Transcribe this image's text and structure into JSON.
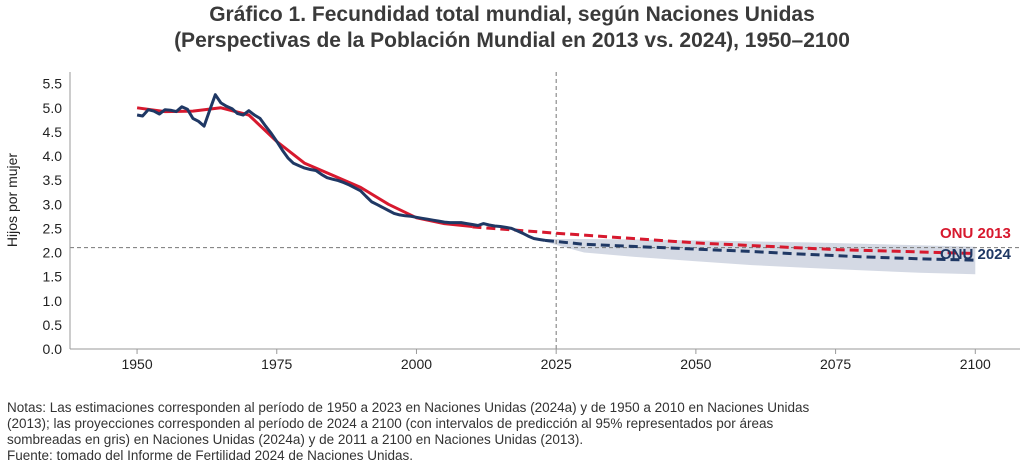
{
  "title_line1": "Gráfico 1. Fecundidad total mundial, según Naciones Unidas",
  "title_line2": "(Perspectivas de la Población Mundial en 2013 vs. 2024), 1950–2100",
  "notes": [
    "Notas: Las estimaciones corresponden al período de 1950 a 2023 en Naciones Unidas (2024a) y de 1950 a 2010 en Naciones Unidas",
    "(2013); las proyecciones corresponden al período de 2024 a 2100 (con intervalos de predicción al 95% representados por áreas",
    "sombreadas en gris) en Naciones Unidas (2024a) y de 2011 a 2100 en Naciones Unidas (2013).",
    "Fuente: tomado del Informe de Fertilidad 2024 de Naciones Unidas."
  ],
  "chart_data": {
    "type": "line",
    "ylabel": "Hijos por mujer",
    "xlim": [
      1938,
      2108
    ],
    "ylim": [
      0,
      5.7
    ],
    "yticks": [
      0.0,
      0.5,
      1.0,
      1.5,
      2.0,
      2.5,
      3.0,
      3.5,
      4.0,
      4.5,
      5.0,
      5.5
    ],
    "yticklabels": [
      "0.0",
      "0.5",
      "1.0",
      "1.5",
      "2.0",
      "2.5",
      "3.0",
      "3.5",
      "4.0",
      "4.5",
      "5.0",
      "5.5"
    ],
    "xticks": [
      1950,
      1975,
      2000,
      2025,
      2050,
      2075,
      2100
    ],
    "xticklabels": [
      "1950",
      "1975",
      "2000",
      "2025",
      "2050",
      "2075",
      "2100"
    ],
    "reference_vline": 2025,
    "reference_hline": 2.1,
    "colors": {
      "onu2013": "#d7192e",
      "onu2024": "#1f3864",
      "band": "#ccd2df",
      "ref": "#777777",
      "axis": "#999999"
    },
    "series": [
      {
        "name": "ONU 2013",
        "estimate": {
          "x": [
            1950,
            1955,
            1960,
            1965,
            1970,
            1975,
            1980,
            1985,
            1990,
            1995,
            2000,
            2005,
            2010
          ],
          "y": [
            5.0,
            4.92,
            4.93,
            5.0,
            4.85,
            4.3,
            3.85,
            3.6,
            3.35,
            3.0,
            2.72,
            2.6,
            2.54
          ]
        },
        "projection": {
          "x": [
            2010,
            2025,
            2050,
            2075,
            2100
          ],
          "y": [
            2.53,
            2.4,
            2.2,
            2.06,
            1.98
          ]
        }
      },
      {
        "name": "ONU 2024",
        "estimate": {
          "x": [
            1950,
            1951,
            1952,
            1953,
            1954,
            1955,
            1956,
            1957,
            1958,
            1959,
            1960,
            1961,
            1962,
            1963,
            1964,
            1965,
            1966,
            1967,
            1968,
            1969,
            1970,
            1971,
            1972,
            1973,
            1974,
            1975,
            1976,
            1977,
            1978,
            1979,
            1980,
            1981,
            1982,
            1983,
            1984,
            1985,
            1986,
            1987,
            1988,
            1989,
            1990,
            1991,
            1992,
            1993,
            1994,
            1995,
            1996,
            1997,
            1998,
            1999,
            2000,
            2001,
            2002,
            2003,
            2004,
            2005,
            2006,
            2007,
            2008,
            2009,
            2010,
            2011,
            2012,
            2013,
            2014,
            2015,
            2016,
            2017,
            2018,
            2019,
            2020,
            2021,
            2022,
            2023
          ],
          "y": [
            4.85,
            4.83,
            4.96,
            4.93,
            4.87,
            4.96,
            4.95,
            4.92,
            5.02,
            4.97,
            4.78,
            4.72,
            4.62,
            4.95,
            5.27,
            5.1,
            5.03,
            4.98,
            4.88,
            4.85,
            4.94,
            4.85,
            4.78,
            4.62,
            4.47,
            4.3,
            4.12,
            3.96,
            3.85,
            3.8,
            3.75,
            3.72,
            3.7,
            3.62,
            3.55,
            3.52,
            3.49,
            3.45,
            3.4,
            3.34,
            3.28,
            3.16,
            3.05,
            2.99,
            2.93,
            2.87,
            2.81,
            2.78,
            2.76,
            2.75,
            2.73,
            2.71,
            2.69,
            2.67,
            2.65,
            2.63,
            2.62,
            2.62,
            2.62,
            2.6,
            2.58,
            2.56,
            2.6,
            2.57,
            2.55,
            2.54,
            2.52,
            2.5,
            2.45,
            2.4,
            2.34,
            2.29,
            2.27,
            2.25
          ]
        },
        "projection": {
          "x": [
            2023,
            2030,
            2040,
            2050,
            2060,
            2070,
            2080,
            2090,
            2100
          ],
          "y": [
            2.25,
            2.17,
            2.12,
            2.07,
            2.02,
            1.96,
            1.91,
            1.87,
            1.84
          ]
        },
        "band": {
          "x": [
            2023,
            2030,
            2040,
            2050,
            2060,
            2070,
            2080,
            2090,
            2100
          ],
          "lower": [
            2.22,
            2.0,
            1.9,
            1.82,
            1.74,
            1.68,
            1.63,
            1.58,
            1.55
          ],
          "upper": [
            2.28,
            2.28,
            2.27,
            2.25,
            2.23,
            2.21,
            2.18,
            2.15,
            2.12
          ]
        }
      }
    ]
  }
}
